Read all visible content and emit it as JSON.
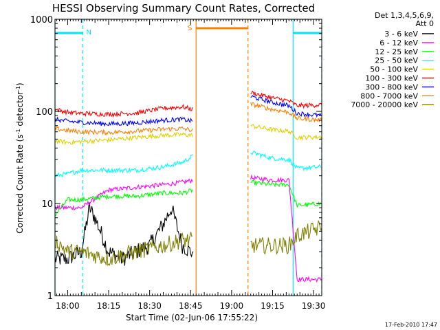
{
  "chart_data": {
    "type": "line",
    "title": "HESSI Observing Summary Count Rates, Corrected",
    "xlabel": "Start Time (02-Jun-06 17:55:22)",
    "ylabel": "Corrected Count Rate (s⁻¹ detector⁻¹)",
    "ylabel_main": "Corrected Count Rate (s",
    "ylabel_sup1": "-1",
    "ylabel_mid": " detector",
    "ylabel_sup2": "-1",
    "ylabel_end": ")",
    "yscale": "log",
    "ylim": [
      1,
      1000
    ],
    "xlim": [
      "17:55:22",
      "19:33:00"
    ],
    "xticks": [
      "18:00",
      "18:15",
      "18:30",
      "18:45",
      "19:00",
      "19:15",
      "19:30"
    ],
    "yticks": [
      "1",
      "10",
      "100",
      "1000"
    ],
    "legend_header": [
      "Det 1,3,4,5,6,9,",
      "Att 0"
    ],
    "legend_position": "right",
    "timestamp": "17-Feb-2010 17:47",
    "annotations": [
      {
        "label": "N",
        "color": "#00e5ff",
        "x": "18:05",
        "type": "night"
      },
      {
        "label": "S",
        "color": "#ff7f00",
        "x": "18:47",
        "type": "saa"
      }
    ],
    "night_intervals": [
      [
        "17:55:22",
        "18:05:30"
      ],
      [
        "19:22:30",
        "19:33:00"
      ]
    ],
    "saa_interval": [
      "18:47:00",
      "19:06:00"
    ],
    "series": [
      {
        "name": "3 - 6 keV",
        "color": "#000000",
        "x": [
          "17:55:22",
          "18:00",
          "18:05",
          "18:08",
          "18:10",
          "18:15",
          "18:20",
          "18:25",
          "18:30",
          "18:35",
          "18:38",
          "18:42",
          "18:45",
          "18:46"
        ],
        "y": [
          2.5,
          2.5,
          3,
          9,
          7,
          3,
          2.5,
          3,
          3.5,
          6,
          9,
          3.5,
          3,
          3
        ]
      },
      {
        "name": "6 - 12 keV",
        "color": "#ff00ff",
        "x": [
          "17:55:22",
          "18:00",
          "18:05",
          "18:15",
          "18:25",
          "18:35",
          "18:42",
          "18:46",
          "19:07",
          "19:15",
          "19:21",
          "19:24",
          "19:33"
        ],
        "y": [
          9,
          9,
          9,
          14,
          15,
          16,
          17,
          18,
          19,
          18,
          18,
          1.5,
          1.5
        ]
      },
      {
        "name": "12 - 25 keV",
        "color": "#00ff00",
        "x": [
          "17:55:22",
          "18:00",
          "18:05",
          "18:15",
          "18:25",
          "18:35",
          "18:42",
          "18:46",
          "19:07",
          "19:15",
          "19:21",
          "19:24",
          "19:33"
        ],
        "y": [
          7.5,
          11,
          11,
          12,
          12,
          13,
          13,
          14,
          17,
          16,
          16,
          9.5,
          10
        ]
      },
      {
        "name": "25 - 50 keV",
        "color": "#00ffff",
        "x": [
          "17:55:22",
          "18:00",
          "18:05",
          "18:15",
          "18:25",
          "18:35",
          "18:42",
          "18:46",
          "19:07",
          "19:15",
          "19:21",
          "19:24",
          "19:33"
        ],
        "y": [
          20,
          21,
          23,
          23,
          23,
          25,
          28,
          33,
          36,
          31,
          30,
          24,
          25
        ]
      },
      {
        "name": "50 - 100 keV",
        "color": "#e0d000",
        "x": [
          "17:55:22",
          "18:00",
          "18:05",
          "18:15",
          "18:25",
          "18:35",
          "18:42",
          "18:46",
          "19:07",
          "19:15",
          "19:21",
          "19:24",
          "19:33"
        ],
        "y": [
          48,
          46,
          47,
          49,
          52,
          55,
          56,
          55,
          70,
          63,
          61,
          52,
          53
        ]
      },
      {
        "name": "100 - 300 keV",
        "color": "#ff0000",
        "x": [
          "17:55:22",
          "18:00",
          "18:05",
          "18:15",
          "18:25",
          "18:35",
          "18:42",
          "18:46",
          "19:07",
          "19:15",
          "19:21",
          "19:24",
          "19:33"
        ],
        "y": [
          105,
          98,
          95,
          93,
          96,
          108,
          112,
          105,
          160,
          140,
          130,
          115,
          118
        ]
      },
      {
        "name": "300 - 800 keV",
        "color": "#0000ff",
        "x": [
          "17:55:22",
          "18:00",
          "18:05",
          "18:15",
          "18:25",
          "18:35",
          "18:42",
          "18:46",
          "19:07",
          "19:15",
          "19:21",
          "19:24",
          "19:33"
        ],
        "y": [
          82,
          78,
          76,
          73,
          75,
          80,
          82,
          78,
          145,
          125,
          115,
          95,
          90
        ]
      },
      {
        "name": "800 - 7000 keV",
        "color": "#ff7f00",
        "x": [
          "17:55:22",
          "18:00",
          "18:05",
          "18:15",
          "18:25",
          "18:35",
          "18:42",
          "18:46",
          "19:07",
          "19:15",
          "19:21",
          "19:24",
          "19:33"
        ],
        "y": [
          65,
          62,
          60,
          59,
          61,
          64,
          65,
          62,
          120,
          105,
          98,
          84,
          80
        ]
      },
      {
        "name": "7000 - 20000 keV",
        "color": "#808000",
        "x": [
          "17:55:22",
          "18:00",
          "18:05",
          "18:15",
          "18:25",
          "18:35",
          "18:42",
          "18:46",
          "19:07",
          "19:15",
          "19:21",
          "19:24",
          "19:33"
        ],
        "y": [
          4,
          3,
          3,
          2.5,
          3,
          3.5,
          4,
          4,
          3.5,
          3.5,
          3.5,
          4.5,
          5.5
        ]
      }
    ]
  }
}
